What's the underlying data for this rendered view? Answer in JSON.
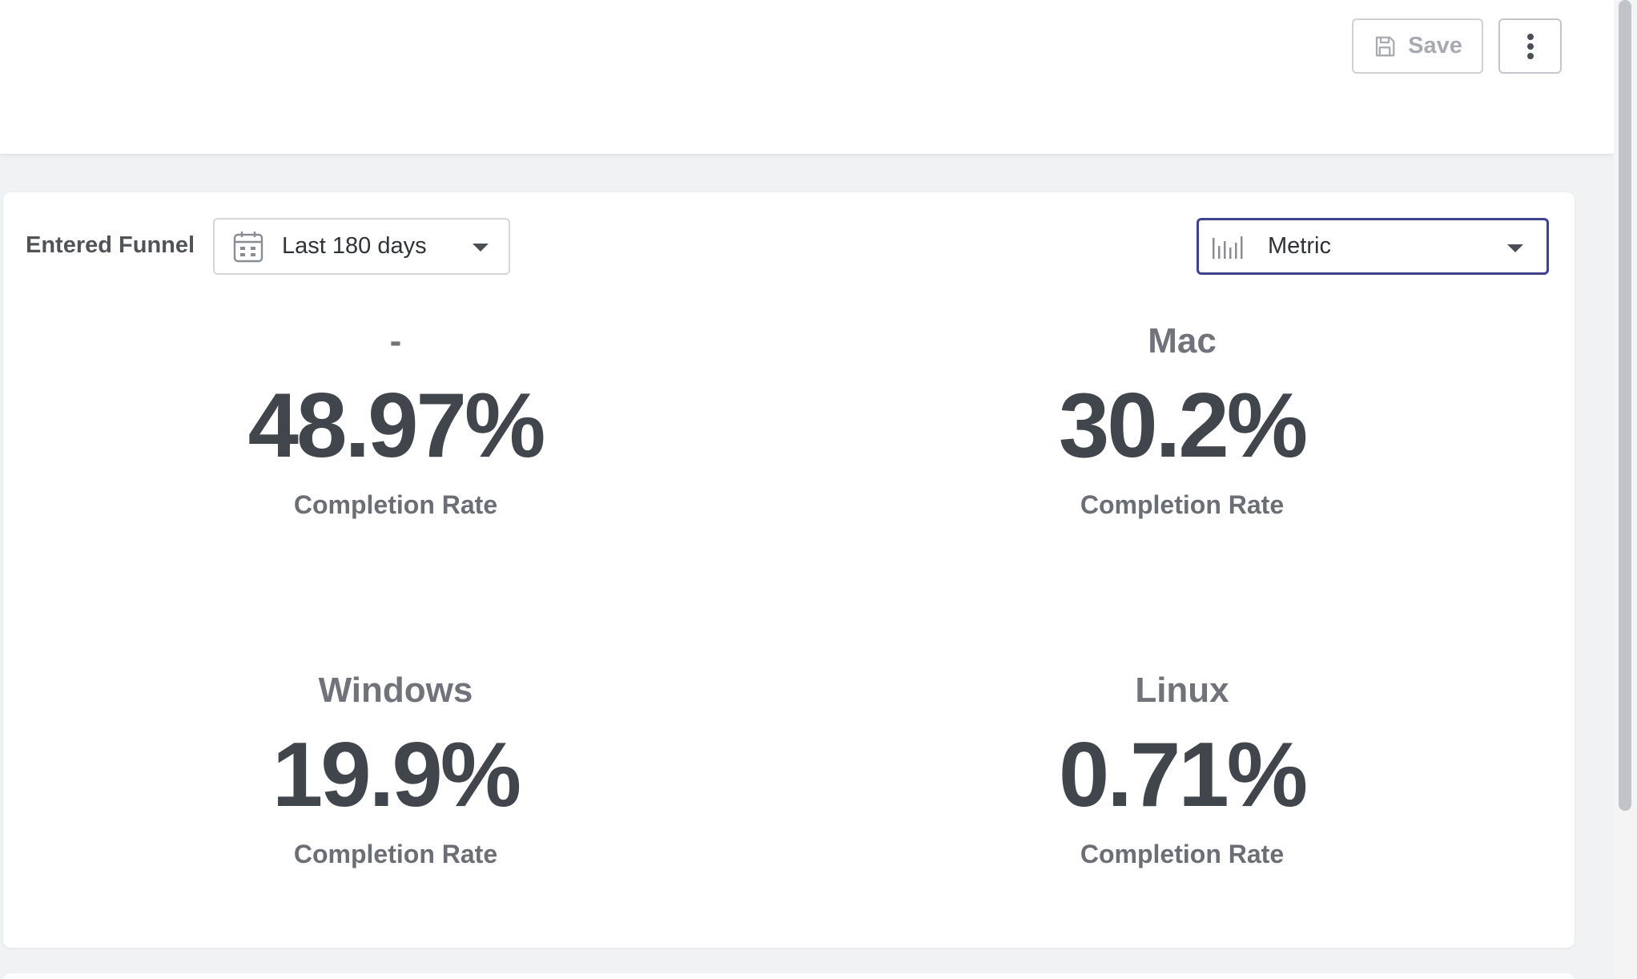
{
  "header": {
    "save_label": "Save"
  },
  "filters": {
    "funnel_label": "Entered Funnel",
    "date_range": "Last 180 days",
    "view_mode": "Metric"
  },
  "stats": [
    {
      "segment": "-",
      "value": "48.97%",
      "label": "Completion Rate"
    },
    {
      "segment": "Mac",
      "value": "30.2%",
      "label": "Completion Rate"
    },
    {
      "segment": "Windows",
      "value": "19.9%",
      "label": "Completion Rate"
    },
    {
      "segment": "Linux",
      "value": "0.71%",
      "label": "Completion Rate"
    }
  ],
  "colors": {
    "accent_border": "#3c3fa3",
    "value_text": "#41454c",
    "muted_text": "#70737a"
  },
  "icons": {
    "save": "save-icon",
    "more": "more-vertical-icon",
    "date": "calendar-icon",
    "metric": "bar-chart-icon",
    "dropdown": "chevron-down-icon"
  }
}
